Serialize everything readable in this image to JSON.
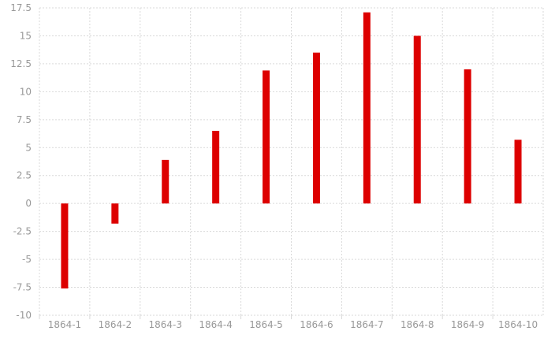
{
  "chart_data": {
    "type": "bar",
    "categories": [
      "1864-1",
      "1864-2",
      "1864-3",
      "1864-4",
      "1864-5",
      "1864-6",
      "1864-7",
      "1864-8",
      "1864-9",
      "1864-10"
    ],
    "values": [
      -7.6,
      -1.8,
      3.9,
      6.5,
      11.9,
      13.5,
      17.1,
      15.0,
      12.0,
      5.7
    ],
    "ylim": [
      -10,
      17.5
    ],
    "yticks": [
      "-10",
      "-7.5",
      "-5",
      "-2.5",
      "0",
      "2.5",
      "5",
      "7.5",
      "10",
      "12.5",
      "15",
      "17.5"
    ],
    "grid": true,
    "bar_color": "#dd0000",
    "grid_color": "#d9d9d9",
    "label_color": "#999999"
  }
}
